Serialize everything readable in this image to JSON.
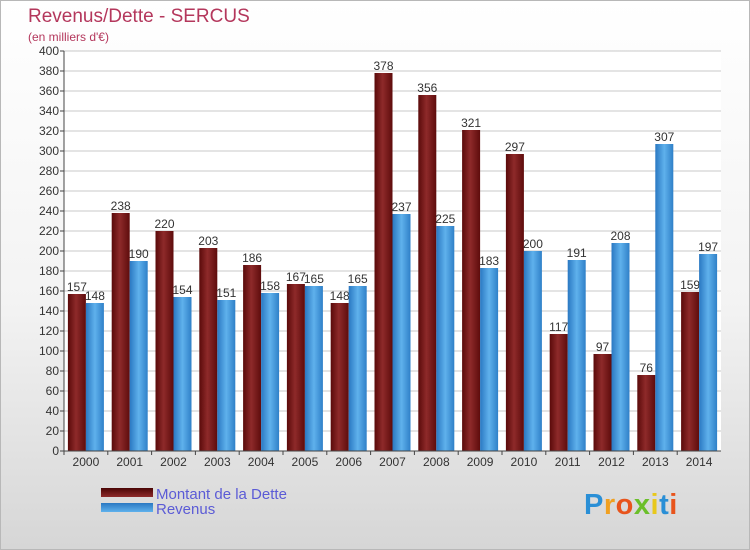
{
  "header": {
    "title": "Revenus/Dette - SERCUS",
    "subtitle": "(en milliers d'€)"
  },
  "legend": {
    "dette_label": "Montant de la Dette",
    "revenus_label": "Revenus"
  },
  "logo": {
    "text": "Proxiti"
  },
  "chart_data": {
    "type": "bar",
    "title": "Revenus/Dette - SERCUS",
    "ylabel": "(en milliers d'€)",
    "xlabel": "",
    "categories": [
      "2000",
      "2001",
      "2002",
      "2003",
      "2004",
      "2005",
      "2006",
      "2007",
      "2008",
      "2009",
      "2010",
      "2011",
      "2012",
      "2013",
      "2014"
    ],
    "series": [
      {
        "name": "Montant de la Dette",
        "color": "#8b1a1a",
        "values": [
          157,
          238,
          220,
          203,
          186,
          167,
          148,
          378,
          356,
          321,
          297,
          117,
          97,
          76,
          159
        ]
      },
      {
        "name": "Revenus",
        "color": "#4a9fe0",
        "values": [
          148,
          190,
          154,
          151,
          158,
          165,
          165,
          237,
          225,
          183,
          200,
          191,
          208,
          307,
          197
        ]
      }
    ],
    "ylim": [
      0,
      400
    ],
    "yticks": [
      0,
      20,
      40,
      60,
      80,
      100,
      120,
      140,
      160,
      180,
      200,
      220,
      240,
      260,
      280,
      300,
      320,
      340,
      360,
      380,
      400
    ],
    "grid": true,
    "legend_position": "bottom-left"
  }
}
